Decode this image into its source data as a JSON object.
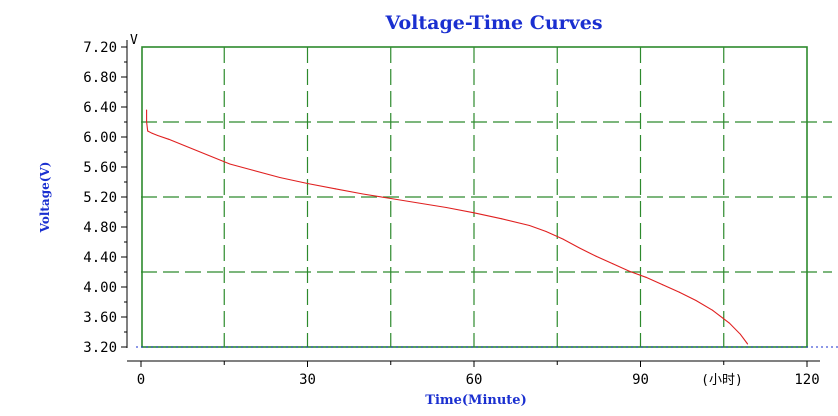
{
  "chart_data": {
    "type": "line",
    "title": "Voltage-Time Curves",
    "ylabel": "Voltage(V)",
    "xlabel": "Time(Minute)",
    "y_unit": "V",
    "x_unit": "(小时)",
    "xlim": [
      0,
      120
    ],
    "ylim": [
      3.2,
      7.2
    ],
    "x_ticks": [
      0,
      30,
      60,
      90,
      120
    ],
    "x_tick_labels": [
      "0",
      "30",
      "60",
      "90",
      "120"
    ],
    "y_ticks": [
      3.2,
      3.6,
      4.0,
      4.4,
      4.8,
      5.2,
      5.6,
      6.0,
      6.4,
      6.8,
      7.2
    ],
    "y_tick_labels": [
      "3.20",
      "3.60",
      "4.00",
      "4.40",
      "4.80",
      "5.20",
      "5.60",
      "6.00",
      "6.40",
      "6.80",
      "7.20"
    ],
    "grid": true,
    "series": [
      {
        "color": "#e02020",
        "x": [
          1.0,
          1.0,
          1.2,
          2,
          3,
          5,
          8,
          12,
          16,
          20,
          25,
          30,
          35,
          40,
          45,
          50,
          55,
          60,
          65,
          70,
          73,
          76,
          79,
          82,
          85,
          88,
          91,
          94,
          97,
          100,
          103,
          106,
          108,
          109.3
        ],
        "y": [
          6.36,
          6.2,
          6.08,
          6.05,
          6.02,
          5.97,
          5.88,
          5.76,
          5.64,
          5.56,
          5.46,
          5.38,
          5.31,
          5.24,
          5.18,
          5.12,
          5.06,
          4.99,
          4.91,
          4.82,
          4.74,
          4.64,
          4.52,
          4.41,
          4.31,
          4.21,
          4.13,
          4.03,
          3.93,
          3.82,
          3.69,
          3.52,
          3.37,
          3.24
        ]
      }
    ]
  }
}
